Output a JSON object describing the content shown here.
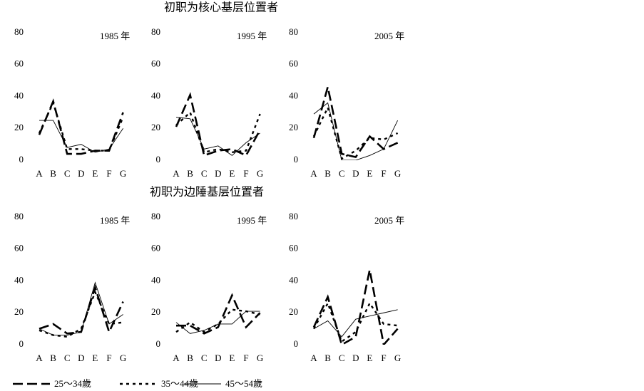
{
  "sections": [
    "初职为核心基层位置者",
    "初职为边陲基层位置者"
  ],
  "chart_data": [
    {
      "type": "line",
      "title": "1985 年",
      "categories": [
        "A",
        "B",
        "C",
        "D",
        "E",
        "F",
        "G"
      ],
      "ylim": [
        0,
        80
      ],
      "yticks": [
        0,
        20,
        40,
        60,
        80
      ],
      "series": [
        {
          "name": "25～34歲",
          "color": "#000000",
          "values": [
            16,
            37,
            4,
            4,
            6,
            6,
            30
          ]
        },
        {
          "name": "35～44歲",
          "color": "#000000",
          "values": [
            17,
            36,
            7,
            7,
            6,
            6,
            27
          ]
        },
        {
          "name": "45～54歲",
          "color": "#000000",
          "values": [
            25,
            25,
            8,
            10,
            5,
            7,
            20
          ]
        }
      ]
    },
    {
      "type": "line",
      "title": "1995 年",
      "categories": [
        "A",
        "B",
        "C",
        "D",
        "E",
        "F",
        "G"
      ],
      "ylim": [
        0,
        80
      ],
      "yticks": [
        0,
        20,
        40,
        60,
        80
      ],
      "series": [
        {
          "name": "25～34歲",
          "color": "#000000",
          "values": [
            21,
            41,
            3,
            6,
            7,
            3,
            19
          ]
        },
        {
          "name": "35～44歲",
          "color": "#000000",
          "values": [
            22,
            30,
            5,
            7,
            5,
            6,
            29
          ]
        },
        {
          "name": "45～54歲",
          "color": "#000000",
          "values": [
            27,
            26,
            7,
            9,
            3,
            11,
            17
          ]
        }
      ]
    },
    {
      "type": "line",
      "title": "2005 年",
      "categories": [
        "A",
        "B",
        "C",
        "D",
        "E",
        "F",
        "G"
      ],
      "ylim": [
        0,
        80
      ],
      "yticks": [
        0,
        20,
        40,
        60,
        80
      ],
      "series": [
        {
          "name": "25～34歲",
          "color": "#000000",
          "values": [
            14,
            46,
            4,
            2,
            15,
            7,
            11
          ]
        },
        {
          "name": "35～44歲",
          "color": "#000000",
          "values": [
            15,
            33,
            1,
            6,
            14,
            13,
            17
          ]
        },
        {
          "name": "45～54歲",
          "color": "#000000",
          "values": [
            29,
            36,
            0,
            0,
            3,
            7,
            25
          ]
        }
      ]
    },
    {
      "type": "line",
      "title": "1985 年",
      "categories": [
        "A",
        "B",
        "C",
        "D",
        "E",
        "F",
        "G"
      ],
      "ylim": [
        0,
        80
      ],
      "yticks": [
        0,
        20,
        40,
        60,
        80
      ],
      "series": [
        {
          "name": "25～34歲",
          "color": "#000000",
          "values": [
            10,
            13,
            7,
            8,
            36,
            8,
            27
          ]
        },
        {
          "name": "35～44歲",
          "color": "#000000",
          "values": [
            9,
            6,
            5,
            10,
            33,
            13,
            14
          ]
        },
        {
          "name": "45～54歲",
          "color": "#000000",
          "values": [
            10,
            6,
            6,
            8,
            39,
            13,
            19
          ]
        }
      ]
    },
    {
      "type": "line",
      "title": "1995 年",
      "categories": [
        "A",
        "B",
        "C",
        "D",
        "E",
        "F",
        "G"
      ],
      "ylim": [
        0,
        80
      ],
      "yticks": [
        0,
        20,
        40,
        60,
        80
      ],
      "series": [
        {
          "name": "25～34歲",
          "color": "#000000",
          "values": [
            12,
            12,
            7,
            11,
            31,
            11,
            20
          ]
        },
        {
          "name": "35～44歲",
          "color": "#000000",
          "values": [
            8,
            14,
            8,
            13,
            22,
            21,
            19
          ]
        },
        {
          "name": "45～54歲",
          "color": "#000000",
          "values": [
            14,
            7,
            9,
            13,
            13,
            21,
            21
          ]
        }
      ]
    },
    {
      "type": "line",
      "title": "2005 年",
      "categories": [
        "A",
        "B",
        "C",
        "D",
        "E",
        "F",
        "G"
      ],
      "ylim": [
        0,
        80
      ],
      "yticks": [
        0,
        20,
        40,
        60,
        80
      ],
      "series": [
        {
          "name": "25～34歲",
          "color": "#000000",
          "values": [
            11,
            30,
            0,
            5,
            47,
            0,
            10
          ]
        },
        {
          "name": "35～44歲",
          "color": "#000000",
          "values": [
            10,
            26,
            2,
            8,
            26,
            13,
            12
          ]
        },
        {
          "name": "45～54歲",
          "color": "#000000",
          "values": [
            10,
            15,
            5,
            16,
            18,
            20,
            22
          ]
        }
      ]
    }
  ]
}
